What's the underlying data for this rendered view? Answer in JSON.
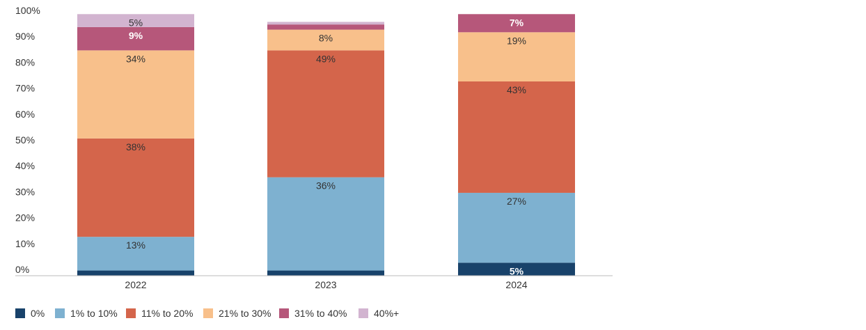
{
  "chart_data": {
    "type": "bar",
    "stacked": true,
    "categories": [
      "2022",
      "2023",
      "2024"
    ],
    "ylim": [
      0,
      100
    ],
    "y_ticks": [
      "0%",
      "10%",
      "20%",
      "30%",
      "40%",
      "50%",
      "60%",
      "70%",
      "80%",
      "90%",
      "100%"
    ],
    "grid": false,
    "legend_position": "bottom-left",
    "series": [
      {
        "name": "0%",
        "color": "#18426a",
        "values": [
          2,
          2,
          5
        ],
        "labels": [
          "",
          "",
          "5%"
        ],
        "label_color": "#ffffff"
      },
      {
        "name": "1% to 10%",
        "color": "#7eb1d0",
        "values": [
          13,
          36,
          27
        ],
        "labels": [
          "13%",
          "36%",
          "27%"
        ],
        "label_color": "#333333"
      },
      {
        "name": "11% to 20%",
        "color": "#d4654b",
        "values": [
          38,
          49,
          43
        ],
        "labels": [
          "38%",
          "49%",
          "43%"
        ],
        "label_color": "#333333"
      },
      {
        "name": "21% to 30%",
        "color": "#f8c08b",
        "values": [
          34,
          8,
          19
        ],
        "labels": [
          "34%",
          "8%",
          "19%"
        ],
        "label_color": "#333333"
      },
      {
        "name": "31% to 40%",
        "color": "#b6577a",
        "values": [
          9,
          2,
          7
        ],
        "labels": [
          "9%",
          "",
          "7%"
        ],
        "label_color": "#ffffff"
      },
      {
        "name": "40%+",
        "color": "#d2b4d0",
        "values": [
          5,
          1,
          0
        ],
        "labels": [
          "5%",
          "",
          ""
        ],
        "label_color": "#333333"
      }
    ]
  }
}
